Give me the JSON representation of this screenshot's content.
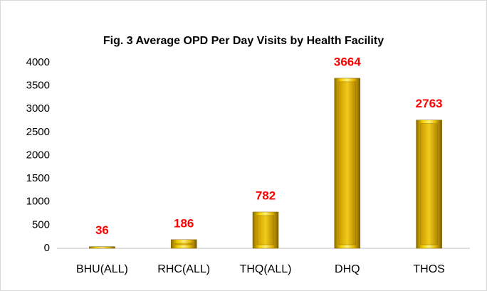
{
  "chart_data": {
    "type": "bar",
    "title": "Fig. 3 Average OPD Per Day Visits by Health Facility",
    "categories": [
      "BHU(ALL)",
      "RHC(ALL)",
      "THQ(ALL)",
      "DHQ",
      "THOS"
    ],
    "values": [
      36,
      186,
      782,
      3664,
      2763
    ],
    "color": "#e6b800",
    "label_color": "#ff0000",
    "ylim": [
      0,
      4000
    ],
    "yticks": [
      0,
      500,
      1000,
      1500,
      2000,
      2500,
      3000,
      3500,
      4000
    ],
    "grid": false
  }
}
